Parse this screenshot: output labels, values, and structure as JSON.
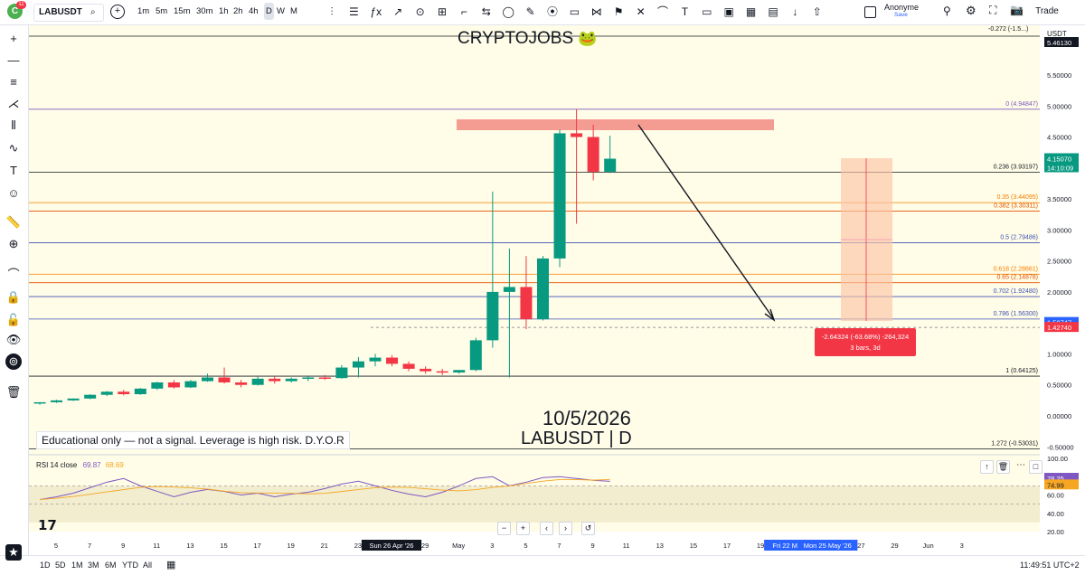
{
  "header": {
    "avatar_letter": "C",
    "notification_count": "11",
    "symbol": "LABUSDT",
    "timeframes": [
      "1m",
      "5m",
      "15m",
      "30m",
      "1h",
      "2h",
      "4h",
      "D",
      "W",
      "M"
    ],
    "active_timeframe": "D",
    "layout_name": "Anonyme",
    "layout_status": "Save",
    "trade_label": "Trade",
    "tool_icons": [
      "candles-icon",
      "bars-icon",
      "fx-icon",
      "alert-icon",
      "replay-icon",
      "trend-line-icon",
      "fib-icon",
      "path-icon",
      "circle-icon",
      "pen-icon",
      "brush-icon",
      "rect-icon",
      "pattern-icon",
      "flag-icon",
      "x-icon",
      "curve-icon",
      "text-icon",
      "note-icon",
      "image-icon",
      "link-icon",
      "upload-icon",
      "share-icon",
      "arrow-up-icon"
    ],
    "right_icons": [
      "zoom-icon",
      "settings-icon",
      "fullscreen-icon",
      "camera-icon"
    ]
  },
  "left_tools": [
    "crosshair-icon",
    "line-icon",
    "channel-icon",
    "pitchfork-icon",
    "fib-tool-icon",
    "brush-tool-icon",
    "text-tool-icon",
    "emoji-icon",
    "ruler-icon",
    "zoom-in-icon",
    "magnet-icon",
    "lock-drawing-icon",
    "lock-icon",
    "eye-icon",
    "layers-icon",
    "trash-icon"
  ],
  "currency": "USDT",
  "watermark": {
    "brand": "CRYPTOJOBS",
    "brand_emoji": "🐸",
    "date": "10/5/2026",
    "symbol_line": "LABUSDT | D",
    "disclaimer": "Educational only — not a signal. Leverage is high risk. D.Y.O.R"
  },
  "price_axis": [
    "5.50000",
    "5.00000",
    "4.50000",
    "4.00000",
    "3.50000",
    "3.00000",
    "2.50000",
    "2.00000",
    "1.50000",
    "1.00000",
    "0.50000",
    "0.00000",
    "-0.50000"
  ],
  "price_tags": {
    "top": "-0.272 (-1.5...)",
    "top_right": "5.46130",
    "current": "4.15070",
    "current_sub": "14:10:09",
    "level_a": "1.50747",
    "level_b": "1.42740"
  },
  "fib_levels": [
    {
      "label": "0 (4.94847)",
      "value": 4.94847,
      "color": "#7e57c2"
    },
    {
      "label": "0.236 (3.93197)",
      "value": 3.93197,
      "color": "#131722"
    },
    {
      "label": "0.35 (3.44095)",
      "value": 3.44095,
      "color": "#f57c00"
    },
    {
      "label": "0.382 (3.30311)",
      "value": 3.30311,
      "color": "#e65100"
    },
    {
      "label": "0.5 (2.79486)",
      "value": 2.79486,
      "color": "#3f51b5"
    },
    {
      "label": "0.618 (2.28661)",
      "value": 2.28661,
      "color": "#f57c00"
    },
    {
      "label": "0.65 (2.14878)",
      "value": 2.14878,
      "color": "#e65100"
    },
    {
      "label": "0.702 (1.92480)",
      "value": 1.9248,
      "color": "#3f51b5"
    },
    {
      "label": "0.786 (1.56300)",
      "value": 1.563,
      "color": "#3f51b5"
    },
    {
      "label": "1 (0.64125)",
      "value": 0.64125,
      "color": "#131722"
    },
    {
      "label": "1.272 (-0.53031)",
      "value": -0.53031,
      "color": "#131722"
    }
  ],
  "measure": {
    "line1": "-2.64324 (-63.68%) -264,324",
    "line2": "3 bars, 3d"
  },
  "rsi": {
    "label": "RSI 14 close",
    "value1": "69.87",
    "value2": "68.69",
    "axis": [
      "100.00",
      "80.00",
      "60.00",
      "40.00",
      "20.00"
    ],
    "tag1": "78.25",
    "tag2": "74.99",
    "values": [
      55,
      58,
      62,
      68,
      74,
      78,
      70,
      64,
      58,
      63,
      66,
      64,
      60,
      62,
      58,
      61,
      63,
      67,
      72,
      75,
      70,
      65,
      61,
      58,
      63,
      70,
      78,
      80,
      70,
      74,
      79,
      80,
      78,
      76,
      74.99
    ]
  },
  "time_axis": {
    "labels": [
      "5",
      "7",
      "9",
      "11",
      "13",
      "15",
      "17",
      "19",
      "21",
      "23",
      "Sun 26 Apr '26",
      "29",
      "May",
      "3",
      "5",
      "7",
      "9",
      "11",
      "13",
      "15",
      "17",
      "19",
      "Fri 22 May '26",
      "Mon 25 May '26",
      "27",
      "29",
      "Jun",
      "3"
    ]
  },
  "bottom": {
    "ranges": [
      "1D",
      "5D",
      "1M",
      "3M",
      "6M",
      "YTD",
      "All"
    ],
    "clock": "11:49:51 UTC+2"
  },
  "chart_data": {
    "type": "candlestick",
    "symbol": "LABUSDT",
    "interval": "D",
    "ylim": [
      -0.6,
      5.9
    ],
    "candles": [
      {
        "o": 0.2,
        "h": 0.22,
        "l": 0.18,
        "c": 0.22
      },
      {
        "o": 0.22,
        "h": 0.26,
        "l": 0.21,
        "c": 0.25
      },
      {
        "o": 0.25,
        "h": 0.28,
        "l": 0.24,
        "c": 0.28
      },
      {
        "o": 0.28,
        "h": 0.35,
        "l": 0.27,
        "c": 0.34
      },
      {
        "o": 0.34,
        "h": 0.4,
        "l": 0.32,
        "c": 0.39
      },
      {
        "o": 0.39,
        "h": 0.42,
        "l": 0.33,
        "c": 0.35
      },
      {
        "o": 0.35,
        "h": 0.45,
        "l": 0.34,
        "c": 0.44
      },
      {
        "o": 0.44,
        "h": 0.55,
        "l": 0.42,
        "c": 0.54
      },
      {
        "o": 0.54,
        "h": 0.58,
        "l": 0.44,
        "c": 0.46
      },
      {
        "o": 0.46,
        "h": 0.58,
        "l": 0.45,
        "c": 0.56
      },
      {
        "o": 0.56,
        "h": 0.68,
        "l": 0.55,
        "c": 0.62
      },
      {
        "o": 0.62,
        "h": 0.78,
        "l": 0.52,
        "c": 0.54
      },
      {
        "o": 0.54,
        "h": 0.58,
        "l": 0.46,
        "c": 0.5
      },
      {
        "o": 0.5,
        "h": 0.63,
        "l": 0.49,
        "c": 0.6
      },
      {
        "o": 0.6,
        "h": 0.64,
        "l": 0.52,
        "c": 0.56
      },
      {
        "o": 0.56,
        "h": 0.62,
        "l": 0.54,
        "c": 0.6
      },
      {
        "o": 0.6,
        "h": 0.64,
        "l": 0.56,
        "c": 0.62
      },
      {
        "o": 0.62,
        "h": 0.66,
        "l": 0.58,
        "c": 0.61
      },
      {
        "o": 0.61,
        "h": 0.82,
        "l": 0.6,
        "c": 0.78
      },
      {
        "o": 0.78,
        "h": 0.95,
        "l": 0.62,
        "c": 0.88
      },
      {
        "o": 0.88,
        "h": 1.0,
        "l": 0.8,
        "c": 0.94
      },
      {
        "o": 0.94,
        "h": 0.98,
        "l": 0.8,
        "c": 0.84
      },
      {
        "o": 0.84,
        "h": 0.88,
        "l": 0.72,
        "c": 0.76
      },
      {
        "o": 0.76,
        "h": 0.8,
        "l": 0.68,
        "c": 0.72
      },
      {
        "o": 0.72,
        "h": 0.76,
        "l": 0.66,
        "c": 0.7
      },
      {
        "o": 0.7,
        "h": 0.74,
        "l": 0.68,
        "c": 0.74
      },
      {
        "o": 0.74,
        "h": 1.26,
        "l": 0.72,
        "c": 1.22
      },
      {
        "o": 1.22,
        "h": 3.62,
        "l": 1.1,
        "c": 2.0
      },
      {
        "o": 2.0,
        "h": 2.7,
        "l": 0.62,
        "c": 2.08
      },
      {
        "o": 2.08,
        "h": 2.58,
        "l": 1.4,
        "c": 1.56
      },
      {
        "o": 1.56,
        "h": 2.58,
        "l": 1.54,
        "c": 2.54
      },
      {
        "o": 2.54,
        "h": 4.62,
        "l": 2.4,
        "c": 4.56
      },
      {
        "o": 4.56,
        "h": 4.95,
        "l": 3.1,
        "c": 4.5
      },
      {
        "o": 4.5,
        "h": 4.7,
        "l": 3.8,
        "c": 3.94
      },
      {
        "o": 3.94,
        "h": 4.52,
        "l": 3.92,
        "c": 4.15
      }
    ]
  }
}
